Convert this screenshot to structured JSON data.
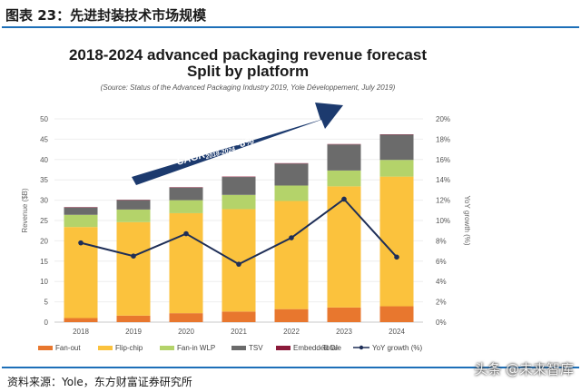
{
  "header": {
    "title": "图表 23：先进封装技术市场规模"
  },
  "footer": {
    "source": "资料来源：Yole，东方财富证券研究所"
  },
  "watermark": {
    "text": "头条 @未来智库"
  },
  "colors": {
    "fan_out": "#e8772e",
    "flip_chip": "#fbc23d",
    "fan_in_wlp": "#b4d36a",
    "tsv": "#6b6b6b",
    "embedded_die": "#8b1a3a",
    "line": "#1e2e57",
    "arrow": "#1c3a6e",
    "rule": "#1d6fb8"
  },
  "chart_data": {
    "type": "bar",
    "stacked": true,
    "title": "2018-2024 advanced packaging revenue forecast",
    "subtitle": "Split by platform",
    "source_note": "(Source: Status of the Advanced Packaging Industry 2019, Yole Développement, July 2019)",
    "annotation": "CAGR",
    "annotation_sub": "2018-2024",
    "annotation_tail": "~8%",
    "ylabel": "Revenue ($B)",
    "y2label": "YoY growth (%)",
    "ylim": [
      0,
      50
    ],
    "y2lim": [
      0,
      20
    ],
    "yticks": [
      "0",
      "5",
      "10",
      "15",
      "20",
      "25",
      "30",
      "35",
      "40",
      "45",
      "50"
    ],
    "y2ticks": [
      "0%",
      "2%",
      "4%",
      "6%",
      "8%",
      "10%",
      "12%",
      "14%",
      "16%",
      "18%",
      "20%"
    ],
    "categories": [
      "2018",
      "2019",
      "2020",
      "2021",
      "2022",
      "2023",
      "2024"
    ],
    "series": [
      {
        "name": "Fan-out",
        "values": [
          1.0,
          1.6,
          2.2,
          2.6,
          3.2,
          3.6,
          3.9
        ]
      },
      {
        "name": "Flip-chip",
        "values": [
          22.4,
          23.0,
          24.6,
          25.2,
          26.6,
          29.8,
          31.9
        ]
      },
      {
        "name": "Fan-in WLP",
        "values": [
          3.0,
          3.1,
          3.2,
          3.5,
          3.8,
          3.9,
          4.1
        ]
      },
      {
        "name": "TSV",
        "values": [
          1.8,
          2.3,
          3.1,
          4.4,
          5.4,
          6.4,
          6.2
        ]
      },
      {
        "name": "Embedded Die",
        "values": [
          0.1,
          0.1,
          0.1,
          0.1,
          0.1,
          0.1,
          0.1
        ]
      }
    ],
    "yoy_growth": {
      "name": "YoY growth (%)",
      "values": [
        7.8,
        6.5,
        8.7,
        5.7,
        8.3,
        12.1,
        6.4
      ]
    },
    "legend": [
      "Fan-out",
      "Flip-chip",
      "Fan-in WLP",
      "TSV",
      "Embedded Die",
      "Total",
      "YoY growth (%)"
    ]
  }
}
